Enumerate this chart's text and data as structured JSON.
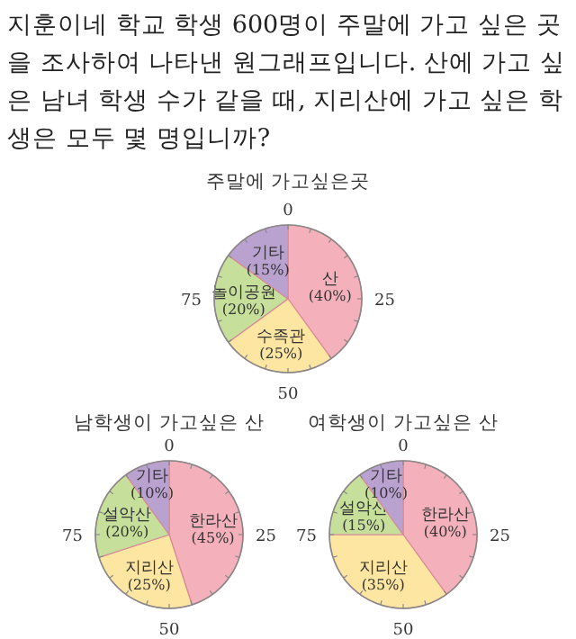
{
  "chart_data": [
    {
      "type": "other",
      "title": "지훈이네 학교 학생 600명이 주말에 가고 싶은 곳을 조사하여 나타낸 원그래프입니다. 산에 가고 싶은 남녀 학생 수가 같을 때, 지리산에 가고 싶은 학생은 모두 몇 명입니까?"
    },
    {
      "type": "pie",
      "title": "주말에 가고싶은곳",
      "categories": [
        "산",
        "수족관",
        "놀이공원",
        "기타"
      ],
      "values": [
        40,
        25,
        20,
        15
      ],
      "value_labels": [
        "(40%)",
        "(25%)",
        "(20%)",
        "(15%)"
      ],
      "colors": [
        "#f4b1bc",
        "#fde5a2",
        "#c6e09c",
        "#baa2d0"
      ],
      "annotations": [
        "0",
        "25",
        "50",
        "75"
      ]
    },
    {
      "type": "pie",
      "title": "남학생이 가고싶은 산",
      "categories": [
        "한라산",
        "지리산",
        "설악산",
        "기타"
      ],
      "values": [
        45,
        25,
        20,
        10
      ],
      "value_labels": [
        "(45%)",
        "(25%)",
        "(20%)",
        "(10%)"
      ],
      "colors": [
        "#f4b1bc",
        "#fde5a2",
        "#c6e09c",
        "#baa2d0"
      ],
      "annotations": [
        "0",
        "25",
        "50",
        "75"
      ]
    },
    {
      "type": "pie",
      "title": "여학생이 가고싶은 산",
      "categories": [
        "한라산",
        "지리산",
        "설악산",
        "기타"
      ],
      "values": [
        40,
        35,
        15,
        10
      ],
      "value_labels": [
        "(40%)",
        "(35%)",
        "(15%)",
        "(10%)"
      ],
      "colors": [
        "#f4b1bc",
        "#fde5a2",
        "#c6e09c",
        "#baa2d0"
      ],
      "annotations": [
        "0",
        "25",
        "50",
        "75"
      ]
    }
  ]
}
